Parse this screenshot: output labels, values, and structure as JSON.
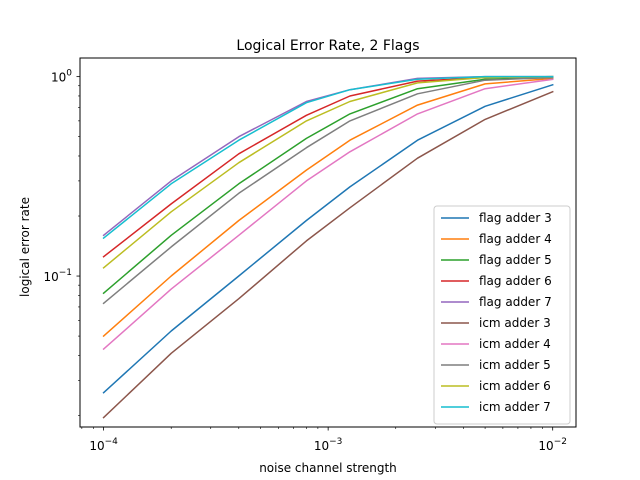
{
  "chart_data": {
    "type": "line",
    "title": "Logical Error Rate, 2 Flags",
    "xlabel": "noise channel strength",
    "ylabel": "logical error rate",
    "xscale": "log",
    "yscale": "log",
    "xlim": [
      7.85e-05,
      0.0127
    ],
    "ylim": [
      0.0175,
      1.24
    ],
    "grid": false,
    "legend_position": "lower right",
    "x": [
      0.0001,
      0.0002,
      0.0004,
      0.0008,
      0.00125,
      0.0025,
      0.005,
      0.01
    ],
    "x_ticks": [
      {
        "value": 0.0001,
        "base": "10",
        "exp": "−4"
      },
      {
        "value": 0.001,
        "base": "10",
        "exp": "−3"
      },
      {
        "value": 0.01,
        "base": "10",
        "exp": "−2"
      }
    ],
    "y_ticks": [
      {
        "value": 0.1,
        "base": "10",
        "exp": "−1"
      },
      {
        "value": 1,
        "base": "10",
        "exp": "0"
      }
    ],
    "series": [
      {
        "name": "flag adder 3",
        "color": "#1f77b4",
        "values": [
          0.026,
          0.053,
          0.1,
          0.19,
          0.28,
          0.48,
          0.71,
          0.91
        ]
      },
      {
        "name": "flag adder 4",
        "color": "#ff7f0e",
        "values": [
          0.05,
          0.1,
          0.19,
          0.34,
          0.48,
          0.72,
          0.92,
          0.98
        ]
      },
      {
        "name": "flag adder 5",
        "color": "#2ca02c",
        "values": [
          0.082,
          0.16,
          0.29,
          0.49,
          0.65,
          0.87,
          0.97,
          0.99
        ]
      },
      {
        "name": "flag adder 6",
        "color": "#d62728",
        "values": [
          0.125,
          0.23,
          0.41,
          0.64,
          0.8,
          0.95,
          0.99,
          1.0
        ]
      },
      {
        "name": "flag adder 7",
        "color": "#9467bd",
        "values": [
          0.16,
          0.3,
          0.5,
          0.75,
          0.86,
          0.98,
          1.0,
          1.0
        ]
      },
      {
        "name": "icm adder 3",
        "color": "#8c564b",
        "values": [
          0.0195,
          0.041,
          0.077,
          0.15,
          0.22,
          0.39,
          0.61,
          0.84
        ]
      },
      {
        "name": "icm adder 4",
        "color": "#e377c2",
        "values": [
          0.043,
          0.086,
          0.16,
          0.3,
          0.42,
          0.65,
          0.87,
          0.97
        ]
      },
      {
        "name": "icm adder 5",
        "color": "#7f7f7f",
        "values": [
          0.073,
          0.14,
          0.26,
          0.44,
          0.6,
          0.82,
          0.96,
          0.99
        ]
      },
      {
        "name": "icm adder 6",
        "color": "#bcbd22",
        "values": [
          0.11,
          0.21,
          0.37,
          0.6,
          0.75,
          0.93,
          0.99,
          1.0
        ]
      },
      {
        "name": "icm adder 7",
        "color": "#17becf",
        "values": [
          0.155,
          0.29,
          0.48,
          0.74,
          0.86,
          0.97,
          1.0,
          1.0
        ]
      }
    ]
  }
}
